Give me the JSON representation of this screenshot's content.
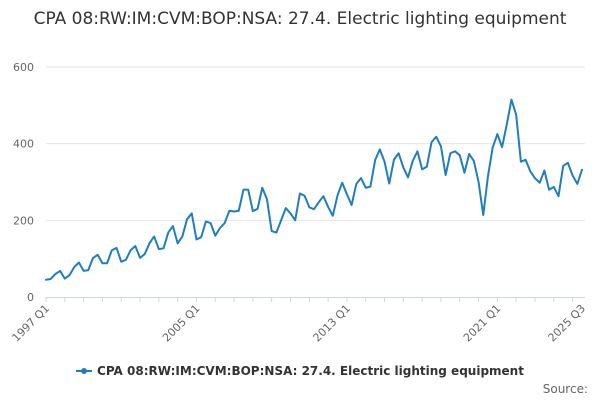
{
  "chart_data": {
    "type": "line",
    "title": "CPA 08:RW:IM:CVM:BOP:NSA: 27.4. Electric lighting equipment",
    "xlabel": "",
    "ylabel": "",
    "ylim": [
      0,
      600
    ],
    "yticks": [
      "0",
      "200",
      "400",
      "600"
    ],
    "grid": true,
    "legend_position": "bottom-center",
    "x_tick_labels": [
      "1997 Q1",
      "2005 Q1",
      "2013 Q1",
      "2021 Q1",
      "2025 Q3"
    ],
    "x_tick_indices": [
      0,
      32,
      64,
      96,
      114
    ],
    "series": [
      {
        "name": "CPA 08:RW:IM:CVM:BOP:NSA: 27.4. Electric lighting equipment",
        "color": "#1f7fbe",
        "start": "1997 Q1",
        "values": [
          45,
          47,
          60,
          68,
          48,
          57,
          78,
          90,
          68,
          70,
          102,
          110,
          88,
          88,
          122,
          128,
          92,
          97,
          122,
          133,
          102,
          112,
          140,
          158,
          125,
          127,
          168,
          185,
          140,
          158,
          203,
          218,
          150,
          156,
          197,
          193,
          160,
          180,
          193,
          225,
          223,
          225,
          280,
          280,
          224,
          230,
          285,
          255,
          172,
          168,
          200,
          232,
          218,
          200,
          270,
          264,
          234,
          229,
          247,
          263,
          235,
          212,
          265,
          298,
          268,
          240,
          295,
          310,
          285,
          288,
          357,
          385,
          353,
          296,
          358,
          375,
          338,
          312,
          355,
          380,
          333,
          340,
          404,
          418,
          393,
          318,
          375,
          380,
          370,
          324,
          373,
          355,
          300,
          214,
          315,
          390,
          425,
          391,
          450,
          515,
          475,
          353,
          358,
          328,
          310,
          298,
          330,
          280,
          287,
          263,
          342,
          350,
          317,
          295,
          332
        ]
      }
    ]
  },
  "legend": {
    "label": "CPA 08:RW:IM:CVM:BOP:NSA: 27.4. Electric lighting equipment"
  },
  "footer": {
    "source_label": "Source:"
  }
}
